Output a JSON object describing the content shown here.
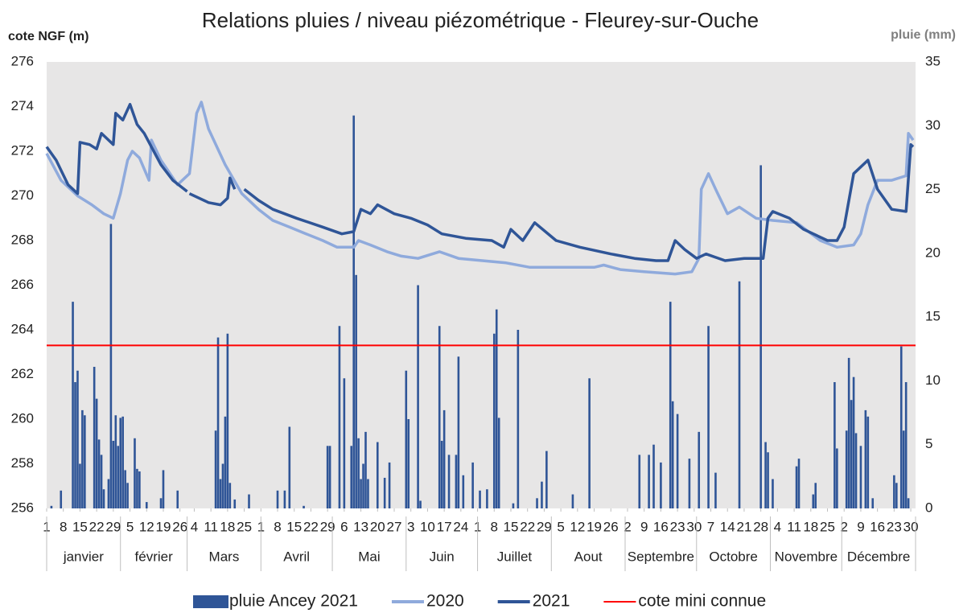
{
  "chart_data": {
    "type": "combo",
    "title": "Relations pluies / niveau piézométrique - Fleurey-sur-Ouche",
    "ylabel": "cote NGF (m)",
    "y2label": "pluie (mm)",
    "xlim": [
      1,
      366
    ],
    "ylim": [
      256,
      276
    ],
    "yticks": [
      256,
      258,
      260,
      262,
      264,
      266,
      268,
      270,
      272,
      274,
      276
    ],
    "y2lim": [
      0,
      35
    ],
    "y2ticks": [
      0,
      5,
      10,
      15,
      20,
      25,
      30,
      35
    ],
    "grid": false,
    "legend": "bottom",
    "xticks": [
      {
        "value": 1,
        "label": "1"
      },
      {
        "value": 8,
        "label": "8"
      },
      {
        "value": 15,
        "label": "15"
      },
      {
        "value": 22,
        "label": "22"
      },
      {
        "value": 29,
        "label": "29"
      },
      {
        "value": 36,
        "label": "5"
      },
      {
        "value": 43,
        "label": "12"
      },
      {
        "value": 50,
        "label": "19"
      },
      {
        "value": 57,
        "label": "26"
      },
      {
        "value": 63,
        "label": "4"
      },
      {
        "value": 70,
        "label": "11"
      },
      {
        "value": 77,
        "label": "18"
      },
      {
        "value": 84,
        "label": "25"
      },
      {
        "value": 91,
        "label": "1"
      },
      {
        "value": 98,
        "label": "8"
      },
      {
        "value": 105,
        "label": "15"
      },
      {
        "value": 112,
        "label": "22"
      },
      {
        "value": 119,
        "label": "29"
      },
      {
        "value": 126,
        "label": "6"
      },
      {
        "value": 133,
        "label": "13"
      },
      {
        "value": 140,
        "label": "20"
      },
      {
        "value": 147,
        "label": "27"
      },
      {
        "value": 154,
        "label": "3"
      },
      {
        "value": 161,
        "label": "10"
      },
      {
        "value": 168,
        "label": "17"
      },
      {
        "value": 175,
        "label": "24"
      },
      {
        "value": 182,
        "label": "1"
      },
      {
        "value": 189,
        "label": "8"
      },
      {
        "value": 196,
        "label": "15"
      },
      {
        "value": 203,
        "label": "22"
      },
      {
        "value": 210,
        "label": "29"
      },
      {
        "value": 217,
        "label": "5"
      },
      {
        "value": 224,
        "label": "12"
      },
      {
        "value": 231,
        "label": "19"
      },
      {
        "value": 238,
        "label": "26"
      },
      {
        "value": 245,
        "label": "2"
      },
      {
        "value": 252,
        "label": "9"
      },
      {
        "value": 259,
        "label": "16"
      },
      {
        "value": 266,
        "label": "23"
      },
      {
        "value": 273,
        "label": "30"
      },
      {
        "value": 280,
        "label": "7"
      },
      {
        "value": 287,
        "label": "14"
      },
      {
        "value": 294,
        "label": "21"
      },
      {
        "value": 301,
        "label": "28"
      },
      {
        "value": 308,
        "label": "4"
      },
      {
        "value": 315,
        "label": "11"
      },
      {
        "value": 322,
        "label": "18"
      },
      {
        "value": 329,
        "label": "25"
      },
      {
        "value": 336,
        "label": "2"
      },
      {
        "value": 343,
        "label": "9"
      },
      {
        "value": 350,
        "label": "16"
      },
      {
        "value": 357,
        "label": "23"
      },
      {
        "value": 364,
        "label": "30"
      }
    ],
    "months": [
      {
        "label": "janvier",
        "start": 1
      },
      {
        "label": "février",
        "start": 32
      },
      {
        "label": "Mars",
        "start": 60
      },
      {
        "label": "Avril",
        "start": 91
      },
      {
        "label": "Mai",
        "start": 121
      },
      {
        "label": "Juin",
        "start": 152
      },
      {
        "label": "Juillet",
        "start": 182
      },
      {
        "label": "Aout",
        "start": 213
      },
      {
        "label": "Septembre",
        "start": 244
      },
      {
        "label": "Octobre",
        "start": 274
      },
      {
        "label": "Novembre",
        "start": 305
      },
      {
        "label": "Décembre",
        "start": 335
      }
    ],
    "reference_lines": [
      {
        "name": "cote mini connue",
        "value": 263.3,
        "color": "#ff0000"
      }
    ],
    "series": [
      {
        "name": "pluie Ancey 2021",
        "type": "bar",
        "axis": "y2",
        "color": "#2f5597",
        "x": [
          3,
          7,
          12,
          13,
          14,
          15,
          16,
          17,
          21,
          22,
          23,
          24,
          25,
          27,
          28,
          29,
          30,
          31,
          32,
          33,
          34,
          35,
          38,
          39,
          40,
          43,
          49,
          50,
          56,
          72,
          73,
          74,
          75,
          76,
          77,
          78,
          80,
          86,
          98,
          101,
          103,
          109,
          119,
          120,
          124,
          126,
          129,
          130,
          131,
          132,
          133,
          134,
          135,
          136,
          140,
          143,
          145,
          152,
          153,
          157,
          158,
          166,
          167,
          168,
          170,
          173,
          174,
          176,
          180,
          183,
          186,
          189,
          190,
          191,
          197,
          199,
          207,
          209,
          211,
          222,
          229,
          250,
          254,
          256,
          259,
          263,
          264,
          266,
          271,
          275,
          279,
          282,
          292,
          301,
          303,
          304,
          306,
          316,
          317,
          323,
          324,
          332,
          333,
          337,
          338,
          339,
          340,
          341,
          343,
          345,
          346,
          348,
          357,
          358,
          360,
          361,
          362,
          363
        ],
        "values": [
          0.2,
          1.4,
          16.2,
          9.9,
          10.8,
          3.5,
          7.7,
          7.3,
          11.1,
          8.6,
          5.4,
          4.2,
          1.5,
          2.3,
          22.3,
          5.3,
          7.3,
          4.9,
          7.1,
          7.2,
          3.0,
          2.0,
          5.5,
          3.1,
          2.9,
          0.5,
          0.8,
          3.0,
          1.4,
          6.1,
          13.4,
          2.3,
          3.5,
          7.2,
          13.7,
          2.0,
          0.7,
          1.1,
          1.4,
          1.4,
          6.4,
          0.2,
          4.9,
          4.9,
          14.3,
          10.2,
          4.9,
          30.8,
          18.3,
          5.5,
          2.3,
          3.5,
          6.0,
          2.3,
          5.2,
          2.4,
          3.6,
          10.8,
          7.0,
          17.5,
          0.6,
          14.3,
          5.3,
          7.7,
          4.2,
          4.2,
          11.9,
          2.6,
          3.6,
          1.4,
          1.5,
          13.7,
          15.6,
          7.1,
          0.4,
          14.0,
          0.8,
          2.1,
          4.5,
          1.1,
          10.2,
          4.2,
          4.2,
          5.0,
          3.6,
          16.2,
          8.4,
          7.4,
          3.9,
          6.0,
          14.3,
          2.8,
          17.8,
          26.9,
          5.2,
          4.4,
          2.3,
          3.3,
          3.9,
          1.1,
          2.0,
          9.9,
          4.7,
          6.1,
          11.8,
          8.5,
          10.3,
          5.9,
          4.9,
          7.7,
          7.2,
          0.8,
          2.6,
          2.0,
          12.7,
          6.1,
          9.9,
          0.8
        ]
      },
      {
        "name": "2020",
        "type": "line",
        "color": "#8faadc",
        "x": [
          1,
          7,
          14,
          20,
          25,
          29,
          32,
          35,
          37,
          40,
          44,
          45,
          49,
          56,
          61,
          64,
          66,
          69,
          76,
          83,
          90,
          96,
          103,
          110,
          117,
          123,
          130,
          132,
          137,
          144,
          150,
          157,
          166,
          174,
          184,
          194,
          204,
          218,
          231,
          235,
          242,
          252,
          265,
          272,
          275,
          276,
          279,
          282,
          287,
          292,
          299,
          306,
          316,
          326,
          333,
          340,
          343,
          346,
          350,
          356,
          362,
          363,
          365
        ],
        "values": [
          271.9,
          270.7,
          270.0,
          269.6,
          269.2,
          269.0,
          270.1,
          271.6,
          272.0,
          271.7,
          270.7,
          272.5,
          271.6,
          270.5,
          271.0,
          273.7,
          274.2,
          273.0,
          271.4,
          270.1,
          269.4,
          268.9,
          268.6,
          268.3,
          268.0,
          267.7,
          267.7,
          268.0,
          267.8,
          267.5,
          267.3,
          267.2,
          267.5,
          267.2,
          267.1,
          267.0,
          266.8,
          266.8,
          266.8,
          266.9,
          266.7,
          266.6,
          266.5,
          266.6,
          267.2,
          270.3,
          271.0,
          270.3,
          269.2,
          269.5,
          269.0,
          268.9,
          268.8,
          268.0,
          267.7,
          267.8,
          268.3,
          269.6,
          270.7,
          270.7,
          270.9,
          272.8,
          272.5
        ]
      },
      {
        "name": "2021",
        "type": "line",
        "color": "#2f5597",
        "x": [
          1,
          5,
          10,
          14,
          15,
          19,
          22,
          24,
          27,
          29,
          30,
          33,
          36,
          39,
          42,
          49,
          54,
          60,
          60.5,
          61,
          69,
          74,
          77,
          78,
          80,
          82,
          84,
          90,
          96,
          106,
          117,
          125,
          130,
          133,
          137,
          140,
          147,
          154,
          161,
          167,
          177,
          188,
          193,
          196,
          201,
          206,
          215,
          225,
          238,
          248,
          257,
          262,
          265,
          269,
          274,
          278,
          286,
          294,
          302,
          304,
          306,
          313,
          319,
          329,
          333,
          336,
          340,
          346,
          350,
          356,
          362,
          364,
          365
        ],
        "values": [
          272.2,
          271.6,
          270.5,
          270.1,
          272.4,
          272.3,
          272.1,
          272.8,
          272.5,
          272.3,
          273.7,
          273.4,
          274.1,
          273.2,
          272.8,
          271.4,
          270.7,
          270.2,
          null,
          270.1,
          269.7,
          269.6,
          269.9,
          270.8,
          270.3,
          null,
          270.3,
          269.8,
          269.4,
          269.0,
          268.6,
          268.3,
          268.4,
          269.4,
          269.2,
          269.6,
          269.2,
          269.0,
          268.7,
          268.3,
          268.1,
          268.0,
          267.7,
          268.5,
          268.0,
          268.8,
          268.0,
          267.7,
          267.4,
          267.2,
          267.1,
          267.1,
          268.0,
          267.6,
          267.2,
          267.4,
          267.1,
          267.2,
          267.2,
          269.0,
          269.3,
          269.0,
          268.5,
          268.0,
          268.0,
          268.6,
          271.0,
          271.6,
          270.3,
          269.4,
          269.3,
          272.3,
          272.2
        ]
      }
    ]
  }
}
